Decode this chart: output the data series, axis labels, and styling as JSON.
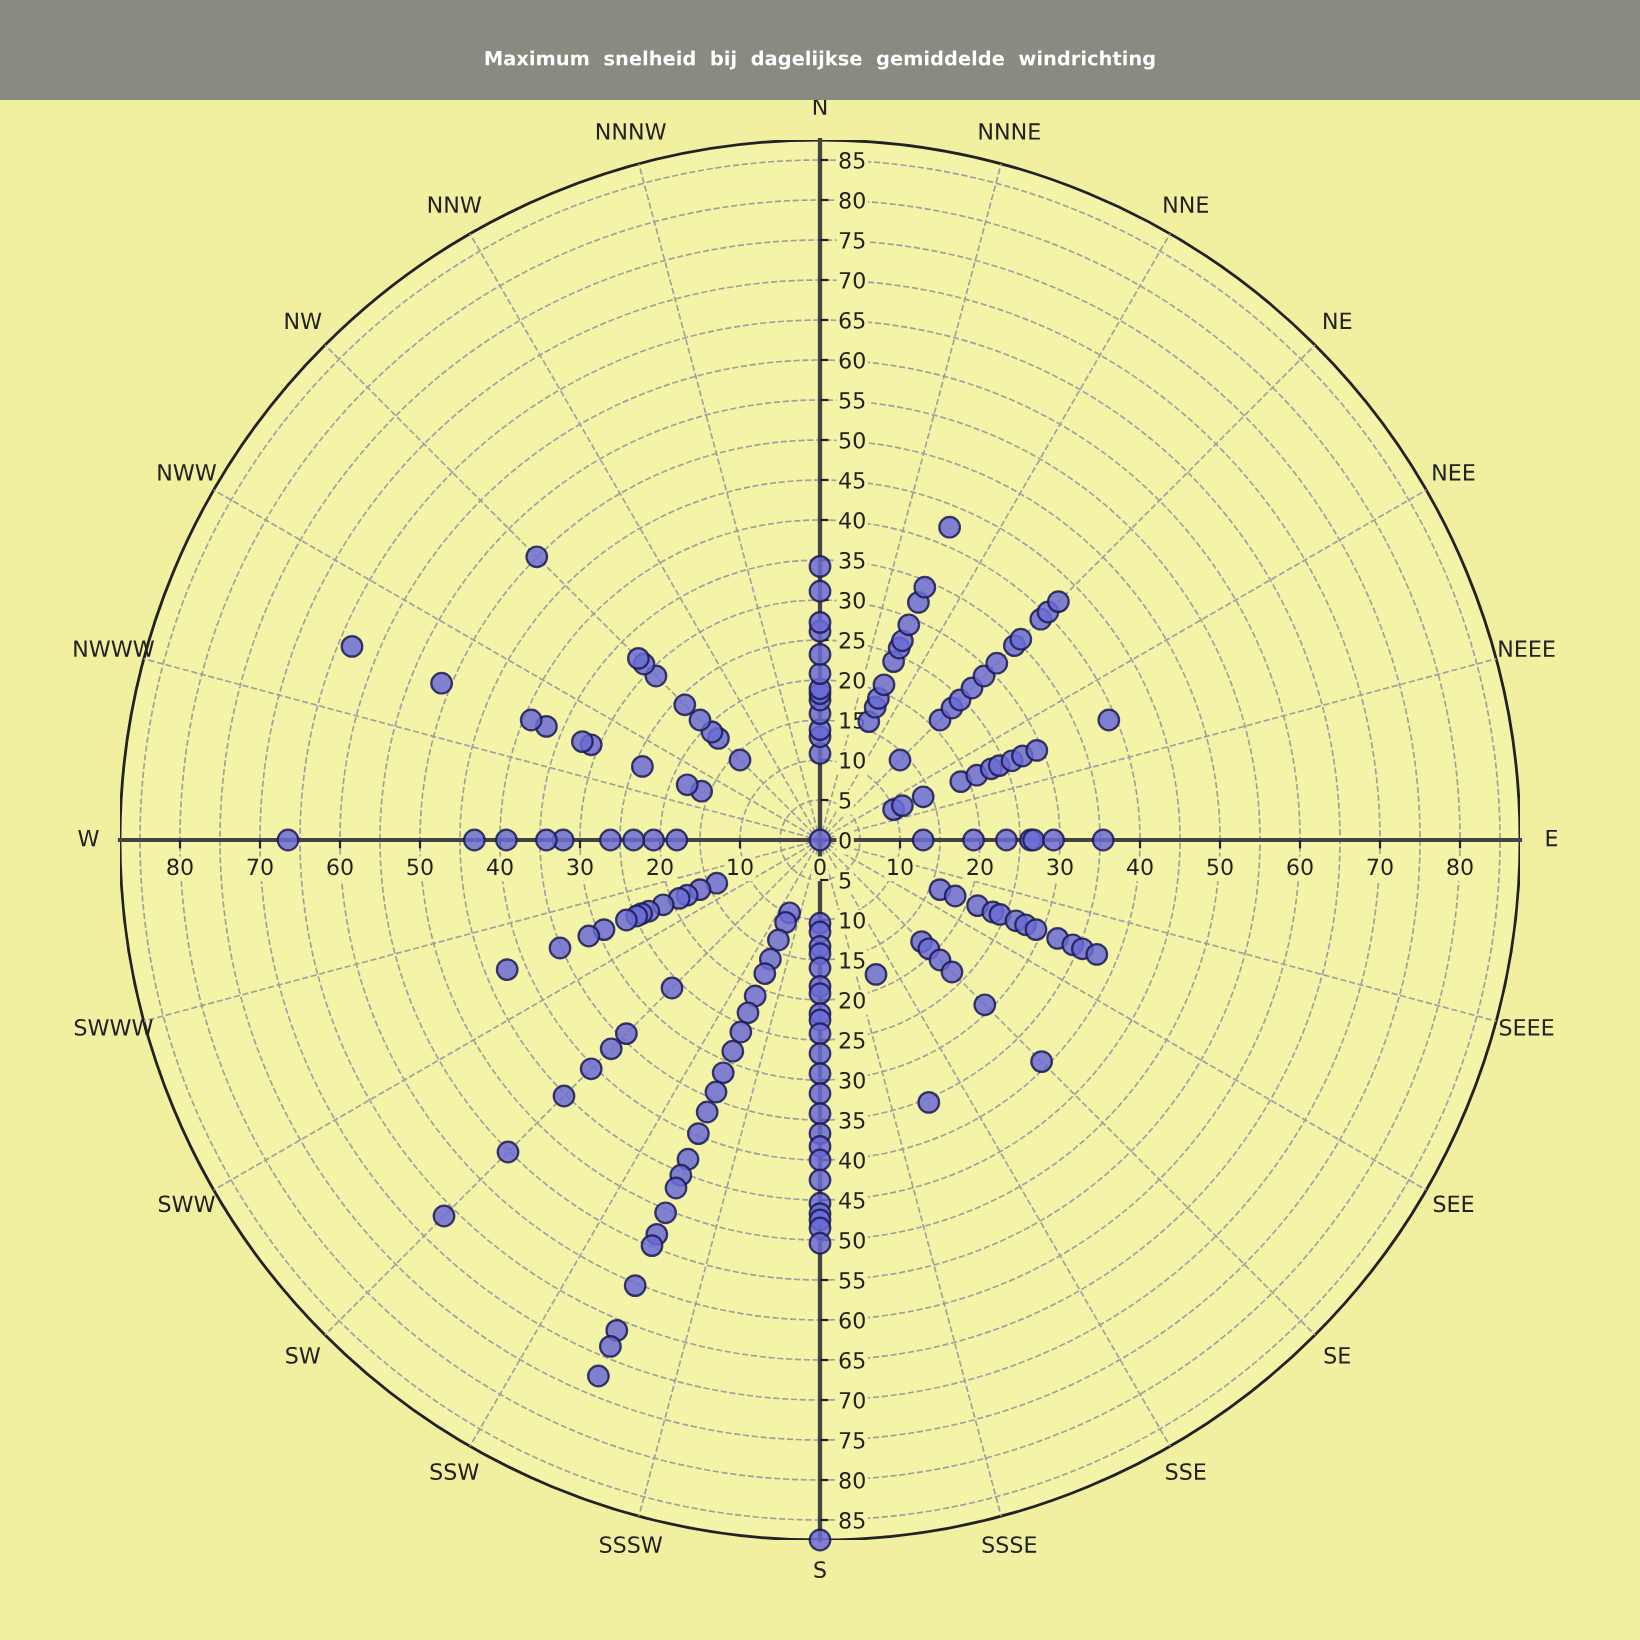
{
  "chart_data": {
    "type": "scatter",
    "title": "Maximum  snelheid  bij  dagelijkse  gemiddelde  windrichting",
    "annotations": [
      "N",
      "NNNE",
      "NNE",
      "NE",
      "NEE",
      "NEEE",
      "E",
      "SEEE",
      "SEE",
      "SE",
      "SSE",
      "SSSE",
      "S",
      "SSSW",
      "SSW",
      "SW",
      "SWW",
      "SWWW",
      "W",
      "NWWW",
      "NWW",
      "NW",
      "NNW",
      "NNNW"
    ],
    "xlim": [
      -87.5,
      87.5
    ],
    "ylim": [
      -87.5,
      87.5
    ],
    "xticks": [
      {
        "value": -80,
        "label": "80"
      },
      {
        "value": -70,
        "label": "70"
      },
      {
        "value": -60,
        "label": "60"
      },
      {
        "value": -50,
        "label": "50"
      },
      {
        "value": -40,
        "label": "40"
      },
      {
        "value": -30,
        "label": "30"
      },
      {
        "value": -20,
        "label": "20"
      },
      {
        "value": -10,
        "label": "10"
      },
      0,
      10,
      20,
      30,
      40,
      50,
      60,
      70,
      80
    ],
    "yticks": [
      {
        "value": -85,
        "label": "85"
      },
      {
        "value": -80,
        "label": "80"
      },
      {
        "value": -75,
        "label": "75"
      },
      {
        "value": -70,
        "label": "70"
      },
      {
        "value": -65,
        "label": "65"
      },
      {
        "value": -60,
        "label": "60"
      },
      {
        "value": -55,
        "label": "55"
      },
      {
        "value": -50,
        "label": "50"
      },
      {
        "value": -45,
        "label": "45"
      },
      {
        "value": -40,
        "label": "40"
      },
      {
        "value": -35,
        "label": "35"
      },
      {
        "value": -30,
        "label": "30"
      },
      {
        "value": -25,
        "label": "25"
      },
      {
        "value": -20,
        "label": "20"
      },
      {
        "value": -15,
        "label": "15"
      },
      {
        "value": -10,
        "label": "10"
      },
      {
        "value": -5,
        "label": "5"
      },
      0,
      5,
      10,
      15,
      20,
      25,
      30,
      35,
      40,
      45,
      50,
      55,
      60,
      65,
      70,
      75,
      80,
      85
    ],
    "marker": "circle",
    "series": [
      {
        "color": "#6b6bd6",
        "x": [
          0,
          0,
          0,
          0,
          0,
          0,
          0,
          0,
          0,
          0,
          0,
          0,
          0,
          0,
          6.1,
          6.9,
          7.3,
          8.0,
          9.2,
          9.9,
          10.3,
          11.1,
          12.3,
          13.1,
          16.2,
          10.0,
          15.0,
          16.5,
          17.5,
          19.0,
          20.5,
          22.1,
          24.3,
          25.1,
          27.6,
          28.5,
          29.8,
          9.2,
          10.3,
          12.9,
          17.6,
          19.6,
          21.4,
          22.4,
          24.0,
          25.3,
          27.1,
          36.1,
          12.9,
          19.2,
          23.3,
          26.3,
          26.7,
          29.2,
          35.4,
          15.0,
          16.9,
          19.7,
          21.6,
          22.5,
          24.5,
          25.7,
          27.0,
          29.7,
          31.6,
          32.8,
          34.6,
          12.7,
          13.6,
          15.0,
          16.5,
          20.6,
          27.7,
          7.0,
          13.6,
          0,
          0,
          0,
          0,
          0,
          0,
          0,
          0,
          0,
          0,
          0,
          0,
          0,
          0,
          0,
          0,
          0,
          0,
          0,
          0,
          0,
          0,
          0,
          0,
          -3.8,
          -4.3,
          -5.2,
          -6.2,
          -6.9,
          -8.1,
          -9.0,
          -9.9,
          -10.9,
          -12.1,
          -13.0,
          -14.1,
          -15.2,
          -16.5,
          -17.4,
          -18.0,
          -19.3,
          -20.4,
          -21.0,
          -23.1,
          -25.4,
          -26.2,
          -27.7,
          -18.5,
          -24.2,
          -26.1,
          -28.6,
          -32.0,
          -39.0,
          -47.0,
          -12.9,
          -15.0,
          -16.6,
          -17.6,
          -19.6,
          -21.4,
          -22.3,
          -22.9,
          -24.2,
          -27.0,
          -28.9,
          -32.5,
          -39.1,
          -17.9,
          -20.8,
          -23.3,
          -26.2,
          -32.1,
          -34.2,
          -39.2,
          -43.2,
          -66.5,
          -14.8,
          -16.6,
          -22.2,
          -28.6,
          -29.7,
          -34.2,
          -36.1,
          -47.3,
          -58.5,
          -10.0,
          -12.7,
          -13.5,
          -15.0,
          -16.9,
          -20.5,
          -22.0,
          -22.7,
          -35.4
        ],
        "values": [
          0,
          10.8,
          12.9,
          13.8,
          15.8,
          17.5,
          18.3,
          18.9,
          20.8,
          23.2,
          26.1,
          27.2,
          31.1,
          34.2,
          14.8,
          16.6,
          17.7,
          19.4,
          22.3,
          24.0,
          24.9,
          26.9,
          29.7,
          31.6,
          39.1,
          10.0,
          15.0,
          16.5,
          17.5,
          19.0,
          20.5,
          22.1,
          24.3,
          25.1,
          27.6,
          28.5,
          29.8,
          3.8,
          4.3,
          5.4,
          7.3,
          8.1,
          8.9,
          9.3,
          9.9,
          10.5,
          11.2,
          15.0,
          0,
          0,
          0,
          0,
          0,
          0,
          0,
          -6.2,
          -7.0,
          -8.2,
          -9.0,
          -9.3,
          -10.1,
          -10.6,
          -11.2,
          -12.3,
          -13.1,
          -13.6,
          -14.3,
          -12.7,
          -13.6,
          -15.0,
          -16.5,
          -20.6,
          -27.7,
          -16.8,
          -32.8,
          -10.4,
          -11.5,
          -13.3,
          -14.2,
          -16,
          -18.3,
          -19.2,
          -21.7,
          -22.5,
          -24.2,
          -26.7,
          -29.2,
          -31.7,
          -34.2,
          -36.7,
          -38.3,
          -40,
          -42.5,
          -45.4,
          -46.7,
          -47.5,
          -48.5,
          -50.4,
          -87.5,
          -9.1,
          -10.3,
          -12.5,
          -14.9,
          -16.7,
          -19.5,
          -21.6,
          -24.0,
          -26.4,
          -29.1,
          -31.5,
          -34.0,
          -36.7,
          -39.9,
          -41.9,
          -43.5,
          -46.6,
          -49.3,
          -50.7,
          -55.7,
          -61.3,
          -63.3,
          -67.0,
          -18.5,
          -24.2,
          -26.1,
          -28.6,
          -32.0,
          -39.0,
          -47.0,
          -5.4,
          -6.2,
          -6.9,
          -7.3,
          -8.1,
          -8.9,
          -9.2,
          -9.5,
          -10.0,
          -11.2,
          -12.0,
          -13.5,
          -16.2,
          0,
          0,
          0,
          0,
          0,
          0,
          0,
          0,
          0,
          6.1,
          6.9,
          9.2,
          11.9,
          12.3,
          14.2,
          15.0,
          19.6,
          24.2,
          10.0,
          12.7,
          13.5,
          15.0,
          16.9,
          20.5,
          22.0,
          22.7,
          35.4
        ]
      }
    ]
  }
}
